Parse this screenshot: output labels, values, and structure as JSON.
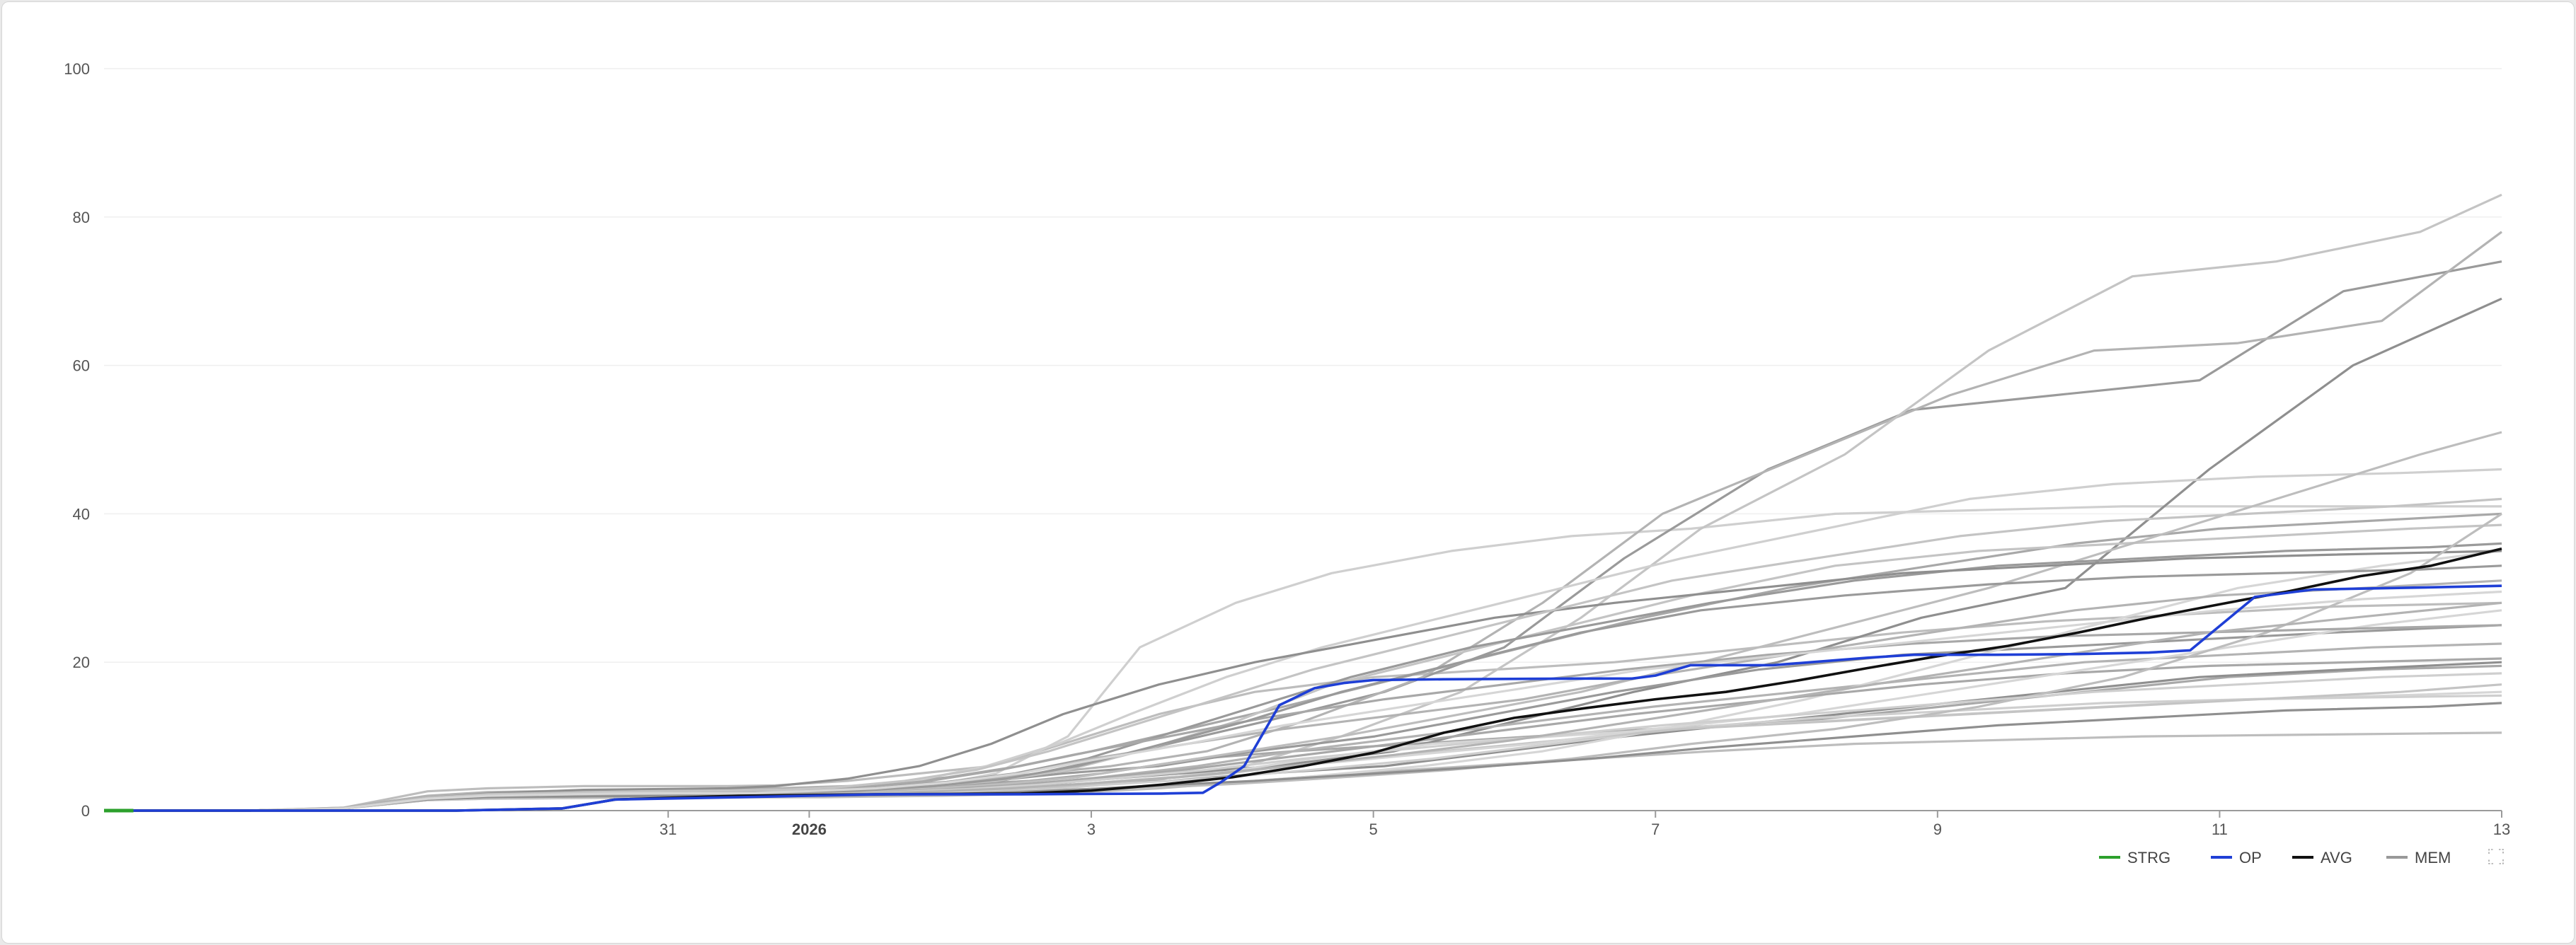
{
  "chart_data": {
    "type": "line",
    "ylim": [
      0,
      100
    ],
    "yticks": [
      "0",
      "20",
      "40",
      "60",
      "80",
      "100"
    ],
    "x_domain": [
      "2025-12-27",
      "2026-01-13"
    ],
    "xticks": [
      {
        "date": "2025-12-31",
        "label": "31",
        "bold": false
      },
      {
        "date": "2026-01-01",
        "label": "2026",
        "bold": true
      },
      {
        "date": "2026-01-03",
        "label": "3",
        "bold": false
      },
      {
        "date": "2026-01-05",
        "label": "5",
        "bold": false
      },
      {
        "date": "2026-01-07",
        "label": "7",
        "bold": false
      },
      {
        "date": "2026-01-09",
        "label": "9",
        "bold": false
      },
      {
        "date": "2026-01-11",
        "label": "11",
        "bold": false
      },
      {
        "date": "2026-01-13",
        "label": "13",
        "bold": false
      }
    ],
    "grid": true,
    "legend_position": "bottom-right",
    "legend": [
      {
        "key": "STRG",
        "label": "STRG",
        "color": "#2ca02c"
      },
      {
        "key": "OP",
        "label": "OP",
        "color": "#1f3fd6"
      },
      {
        "key": "AVG",
        "label": "AVG",
        "color": "#111111"
      },
      {
        "key": "MEM",
        "label": "MEM",
        "color": "#999999"
      }
    ],
    "series": [
      {
        "name": "STRG",
        "color": "#2ca02c",
        "x": [
          "2025-12-27",
          "2025-12-27 05:00"
        ],
        "values": [
          0,
          0
        ]
      },
      {
        "name": "OP",
        "color": "#1f3fd6",
        "x": [
          "2025-12-27 05:00",
          "2025-12-29 12:00",
          "2025-12-30 06:00",
          "2025-12-30 15:00",
          "2025-12-31 12:00",
          "2026-01-01 12:00",
          "2026-01-02 12:00",
          "2026-01-03 12:00",
          "2026-01-03 19:00",
          "2026-01-03 22:00",
          "2026-01-04 02:00",
          "2026-01-04 08:00",
          "2026-01-04 14:00",
          "2026-01-04 19:00",
          "2026-01-05 00:00",
          "2026-01-05 12:00",
          "2026-01-06 12:00",
          "2026-01-06 20:00",
          "2026-01-07 00:00",
          "2026-01-07 06:00",
          "2026-01-07 20:00",
          "2026-01-08 12:00",
          "2026-01-08 20:00",
          "2026-01-09 10:00",
          "2026-01-10 00:00",
          "2026-01-10 12:00",
          "2026-01-10 19:00",
          "2026-01-11 06:00",
          "2026-01-11 16:00",
          "2026-01-12 12:00",
          "2026-01-13 00:00"
        ],
        "values": [
          0,
          0,
          0.3,
          1.5,
          1.8,
          2.2,
          2.2,
          2.3,
          2.4,
          3.8,
          6.0,
          14.2,
          16.5,
          17.2,
          17.6,
          17.7,
          17.8,
          17.8,
          18.2,
          19.6,
          19.6,
          20.6,
          21.0,
          21.0,
          21.1,
          21.3,
          21.6,
          28.8,
          29.8,
          30.1,
          30.3
        ]
      },
      {
        "name": "AVG",
        "color": "#111111",
        "x": [
          "2025-12-27 05:00",
          "2025-12-29 12:00",
          "2025-12-30 06:00",
          "2025-12-30 15:00",
          "2025-12-31 12:00",
          "2026-01-01 12:00",
          "2026-01-02 12:00",
          "2026-01-03 00:00",
          "2026-01-03 12:00",
          "2026-01-04 00:00",
          "2026-01-04 12:00",
          "2026-01-05 00:00",
          "2026-01-05 12:00",
          "2026-01-06 00:00",
          "2026-01-06 12:00",
          "2026-01-07 00:00",
          "2026-01-07 12:00",
          "2026-01-08 00:00",
          "2026-01-08 12:00",
          "2026-01-09 00:00",
          "2026-01-09 12:00",
          "2026-01-10 00:00",
          "2026-01-10 12:00",
          "2026-01-11 00:00",
          "2026-01-11 12:00",
          "2026-01-12 00:00",
          "2026-01-12 12:00",
          "2026-01-13 00:00"
        ],
        "values": [
          0,
          0,
          0.3,
          1.5,
          2.0,
          2.2,
          2.3,
          2.7,
          3.5,
          4.5,
          6.0,
          7.8,
          10.5,
          12.5,
          13.8,
          15.0,
          16.0,
          17.5,
          19.2,
          20.8,
          22.2,
          24.0,
          26.0,
          27.8,
          29.6,
          31.6,
          33.0,
          35.3
        ]
      }
    ],
    "member_series": [
      {
        "values": [
          0,
          0,
          0.4,
          2.6,
          3.0,
          3.3,
          3.3,
          3.4,
          4.0,
          5.0,
          6.0,
          9.0,
          13.0,
          16.0,
          18.0,
          19.0,
          20.0,
          22.0,
          24.0,
          25.5,
          26.5,
          27.5,
          28.0
        ]
      },
      {
        "values": [
          0,
          0,
          0.3,
          1.8,
          2.2,
          2.5,
          2.5,
          2.6,
          3.0,
          3.5,
          4.0,
          5.0,
          7.0,
          8.0,
          9.0,
          10.0,
          11.0,
          12.0,
          14.0,
          16.0,
          18.0,
          19.0,
          19.5
        ]
      },
      {
        "values": [
          0,
          0,
          0.3,
          1.6,
          2.0,
          2.3,
          2.3,
          2.5,
          3.2,
          5.0,
          10.0,
          22.0,
          28.0,
          32.0,
          35.0,
          37.0,
          38.0,
          40.0,
          40.5,
          41.0,
          41.0,
          41.0,
          41.0
        ]
      },
      {
        "values": [
          0,
          0,
          0.3,
          1.5,
          1.8,
          2.0,
          2.1,
          2.2,
          2.5,
          3.0,
          4.0,
          6.0,
          9.0,
          12.0,
          16.0,
          22.0,
          34.0,
          46.0,
          54.0,
          56.0,
          58.0,
          70.0,
          74.0
        ]
      },
      {
        "values": [
          0,
          0,
          0.4,
          2.0,
          2.5,
          2.8,
          3.0,
          3.2,
          3.5,
          4.0,
          5.0,
          6.0,
          8.0,
          12.0,
          18.0,
          28.0,
          40.0,
          48.0,
          56.0,
          62.0,
          63.0,
          66.0,
          78.0
        ]
      },
      {
        "values": [
          0,
          0,
          0.3,
          1.5,
          1.8,
          2.0,
          2.0,
          2.1,
          2.3,
          2.6,
          3.2,
          4.0,
          6.0,
          10.0,
          16.0,
          26.0,
          38.0,
          48.0,
          62.0,
          72.0,
          74.0,
          78.0,
          83.0
        ]
      },
      {
        "values": [
          0,
          0,
          0.3,
          1.5,
          1.8,
          2.0,
          2.0,
          2.1,
          2.3,
          2.6,
          3.0,
          4.0,
          5.0,
          6.0,
          8.0,
          12.0,
          16.0,
          20.0,
          26.0,
          30.0,
          46.0,
          60.0,
          69.0
        ]
      },
      {
        "values": [
          0,
          0,
          0.3,
          1.4,
          1.6,
          1.8,
          1.8,
          1.9,
          2.1,
          2.4,
          3.0,
          4.0,
          5.0,
          7.0,
          9.0,
          10.0,
          11.0,
          12.0,
          13.0,
          14.0,
          15.0,
          15.5,
          16.0
        ]
      },
      {
        "values": [
          0,
          0,
          0.3,
          1.4,
          1.6,
          1.8,
          1.8,
          1.9,
          2.0,
          2.2,
          2.5,
          3.0,
          4.0,
          5.0,
          6.0,
          7.0,
          8.0,
          9.0,
          9.5,
          10.0,
          10.2,
          10.4,
          10.5
        ]
      },
      {
        "values": [
          0,
          0,
          0.3,
          1.6,
          2.0,
          2.3,
          2.5,
          2.8,
          3.5,
          4.5,
          6.0,
          8.0,
          11.0,
          14.0,
          18.0,
          22.0,
          26.0,
          30.0,
          33.0,
          36.0,
          38.0,
          39.0,
          40.0
        ]
      },
      {
        "values": [
          0,
          0,
          0.3,
          1.7,
          2.2,
          2.6,
          2.8,
          3.0,
          4.0,
          6.0,
          9.0,
          13.0,
          18.0,
          22.0,
          26.0,
          30.0,
          34.0,
          38.0,
          42.0,
          44.0,
          45.0,
          45.5,
          46.0
        ]
      },
      {
        "values": [
          0,
          0,
          0.3,
          1.5,
          1.9,
          2.2,
          2.2,
          2.3,
          2.6,
          3.0,
          4.0,
          5.0,
          6.0,
          8.0,
          10.0,
          13.0,
          16.0,
          19.0,
          21.0,
          22.0,
          23.0,
          24.0,
          25.0
        ]
      },
      {
        "values": [
          0,
          0,
          0.3,
          1.5,
          1.9,
          2.1,
          2.1,
          2.2,
          2.4,
          2.8,
          3.5,
          4.5,
          6.0,
          8.0,
          10.0,
          12.0,
          14.0,
          16.0,
          18.0,
          20.0,
          21.0,
          22.0,
          22.5
        ]
      },
      {
        "values": [
          0,
          0,
          0.3,
          1.6,
          2.0,
          2.4,
          2.5,
          2.7,
          3.2,
          4.0,
          5.5,
          8.0,
          12.0,
          17.0,
          21.0,
          25.0,
          29.0,
          33.0,
          35.0,
          36.0,
          37.0,
          38.0,
          38.5
        ]
      },
      {
        "values": [
          0,
          0,
          0.3,
          1.5,
          1.8,
          2.0,
          2.0,
          2.1,
          2.3,
          2.6,
          3.0,
          3.5,
          4.0,
          5.0,
          6.0,
          8.0,
          10.0,
          12.0,
          14.0,
          16.0,
          18.0,
          19.0,
          20.0
        ]
      },
      {
        "values": [
          0,
          0,
          0.3,
          1.5,
          1.8,
          2.0,
          2.0,
          2.1,
          2.2,
          2.4,
          2.7,
          3.0,
          3.5,
          4.5,
          6.0,
          8.0,
          11.0,
          15.0,
          20.0,
          25.0,
          30.0,
          33.0,
          35.0
        ]
      },
      {
        "values": [
          0,
          0,
          0.3,
          1.6,
          2.0,
          2.2,
          2.3,
          2.5,
          3.0,
          3.6,
          4.5,
          6.0,
          8.0,
          10.0,
          13.0,
          16.0,
          20.0,
          25.0,
          30.0,
          36.0,
          42.0,
          48.0,
          51.0
        ]
      },
      {
        "values": [
          0,
          0,
          0.3,
          1.5,
          1.8,
          2.0,
          2.0,
          2.1,
          2.4,
          2.8,
          3.4,
          4.2,
          5.4,
          7.0,
          9.0,
          11.0,
          13.0,
          15.0,
          17.0,
          18.5,
          19.5,
          20.0,
          20.5
        ]
      },
      {
        "values": [
          0,
          0,
          0.3,
          1.4,
          1.7,
          1.9,
          1.9,
          2.0,
          2.2,
          2.5,
          3.0,
          3.6,
          4.4,
          5.5,
          7.0,
          9.0,
          11.0,
          12.5,
          13.5,
          14.5,
          15.0,
          15.3,
          15.5
        ]
      },
      {
        "values": [
          0,
          0,
          0.3,
          1.6,
          2.1,
          2.5,
          2.7,
          3.0,
          3.8,
          5.0,
          7.0,
          10.0,
          14.0,
          18.0,
          22.0,
          25.0,
          28.0,
          31.0,
          33.0,
          34.0,
          35.0,
          35.5,
          36.0
        ]
      },
      {
        "values": [
          0,
          0,
          0.3,
          1.5,
          1.9,
          2.2,
          2.3,
          2.5,
          3.0,
          3.8,
          5.0,
          7.0,
          9.0,
          11.0,
          13.0,
          15.0,
          18.0,
          21.0,
          24.0,
          27.0,
          29.0,
          30.0,
          31.0
        ]
      },
      {
        "values": [
          0,
          0,
          0.3,
          1.5,
          1.8,
          2.0,
          2.0,
          2.1,
          2.3,
          2.7,
          3.2,
          4.0,
          5.0,
          6.5,
          8.0,
          9.5,
          11.0,
          12.0,
          13.0,
          14.0,
          15.0,
          16.0,
          17.0
        ]
      },
      {
        "values": [
          0,
          0,
          0.3,
          1.7,
          2.3,
          2.8,
          3.0,
          3.3,
          4.3,
          6.0,
          9.0,
          13.0,
          17.0,
          20.0,
          23.0,
          26.0,
          28.0,
          30.0,
          32.0,
          33.0,
          34.0,
          34.5,
          35.0
        ]
      },
      {
        "values": [
          0,
          0,
          0.3,
          1.5,
          1.8,
          2.0,
          2.0,
          2.1,
          2.3,
          2.6,
          3.1,
          3.8,
          4.8,
          6.0,
          7.5,
          9.0,
          11.0,
          13.0,
          16.0,
          19.0,
          22.0,
          25.0,
          27.0
        ]
      },
      {
        "values": [
          0,
          0,
          0.3,
          1.5,
          1.8,
          2.0,
          2.0,
          2.1,
          2.2,
          2.4,
          2.7,
          3.0,
          3.6,
          4.4,
          5.5,
          7.0,
          9.0,
          11.0,
          14.0,
          18.0,
          24.0,
          32.0,
          40.0
        ]
      },
      {
        "values": [
          0,
          0,
          0.3,
          1.6,
          2.0,
          2.3,
          2.4,
          2.6,
          3.1,
          4.0,
          5.5,
          7.5,
          10.0,
          12.5,
          15.0,
          17.0,
          19.0,
          21.0,
          22.5,
          23.5,
          24.0,
          24.5,
          25.0
        ]
      },
      {
        "values": [
          0,
          0,
          0.3,
          1.5,
          1.9,
          2.1,
          2.1,
          2.2,
          2.5,
          2.9,
          3.5,
          4.3,
          5.5,
          7.0,
          8.5,
          10.0,
          11.5,
          13.0,
          14.5,
          16.0,
          17.0,
          18.0,
          18.5
        ]
      },
      {
        "values": [
          0,
          0,
          0.3,
          1.6,
          2.0,
          2.4,
          2.5,
          2.7,
          3.3,
          4.3,
          6.0,
          8.5,
          12.0,
          16.0,
          20.0,
          24.0,
          27.0,
          29.0,
          30.5,
          31.5,
          32.0,
          32.5,
          33.0
        ]
      },
      {
        "values": [
          0,
          0,
          0.3,
          1.5,
          1.8,
          2.0,
          2.0,
          2.1,
          2.3,
          2.6,
          3.0,
          3.6,
          4.5,
          5.8,
          7.5,
          9.5,
          12.0,
          15.0,
          18.0,
          21.0,
          24.0,
          26.0,
          28.0
        ]
      },
      {
        "values": [
          0,
          0,
          0.3,
          1.7,
          2.2,
          2.6,
          2.8,
          3.1,
          4.0,
          5.5,
          8.0,
          11.0,
          15.0,
          19.0,
          23.0,
          27.0,
          31.0,
          34.0,
          37.0,
          39.0,
          40.0,
          41.0,
          42.0
        ]
      },
      {
        "values": [
          0,
          0,
          0.3,
          1.5,
          1.8,
          2.0,
          2.0,
          2.1,
          2.2,
          2.5,
          2.9,
          3.4,
          4.0,
          4.8,
          5.8,
          7.0,
          8.5,
          10.0,
          11.5,
          12.5,
          13.5,
          14.0,
          14.5
        ]
      },
      {
        "values": [
          0,
          0,
          0.3,
          1.6,
          2.0,
          2.3,
          2.4,
          2.6,
          3.0,
          3.8,
          5.0,
          6.8,
          9.0,
          11.5,
          14.0,
          16.5,
          19.0,
          21.0,
          23.0,
          25.0,
          27.0,
          28.5,
          29.5
        ]
      }
    ]
  }
}
